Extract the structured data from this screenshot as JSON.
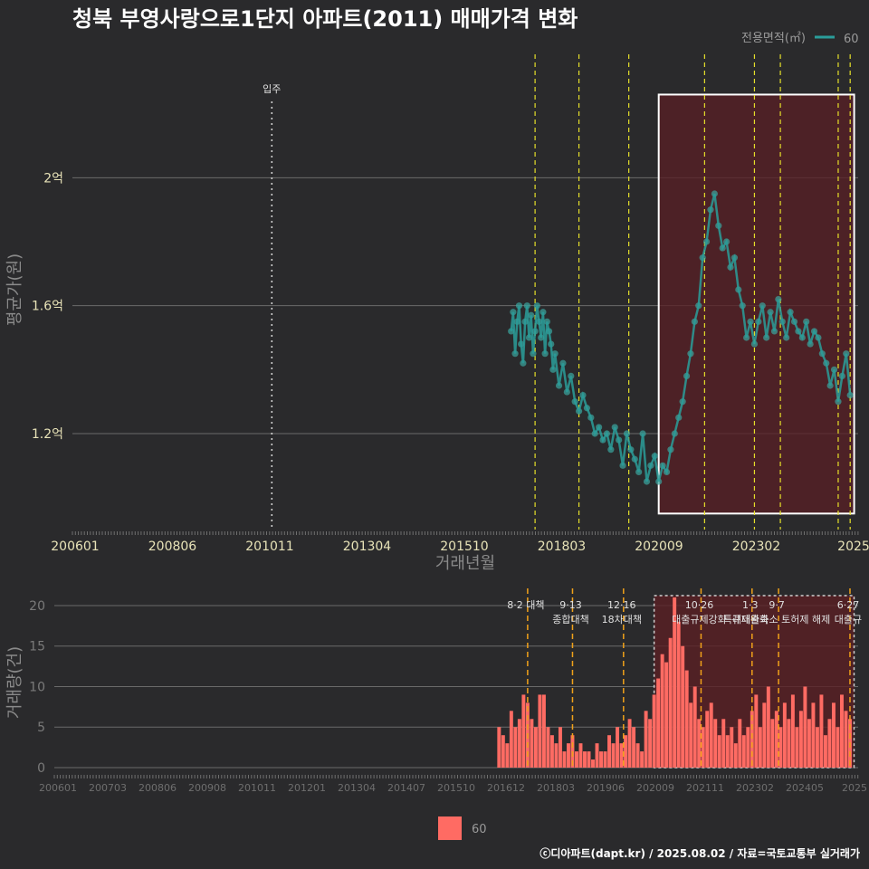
{
  "title": "청북 부영사랑으로1단지 아파트(2011) 매매가격 변화",
  "footer": "ⓒ디아파트(dapt.kr) / 2025.08.02 / 자료=국토교통부 실거래가",
  "colors": {
    "line": "#2a9d9a",
    "point": "#3aa6a0",
    "bar": "#ff6b63",
    "vline": "#e6e02a",
    "policy": "#f0a11a",
    "highlight_fill": "#5a1f24",
    "highlight_border": "#ffffff"
  },
  "chart_data": [
    {
      "type": "scatter",
      "title": "청북 부영사랑으로1단지 아파트(2011) 매매가격 변화",
      "xlabel": "거래년월",
      "ylabel": "평균가(원)",
      "x_tick_labels": [
        "200601",
        "200806",
        "201011",
        "201304",
        "201510",
        "201803",
        "202009",
        "202302",
        "2025"
      ],
      "y_ticks": [
        {
          "value": 1.2,
          "label": "1.2억"
        },
        {
          "value": 1.6,
          "label": "1.6억"
        },
        {
          "value": 2.0,
          "label": "2억"
        }
      ],
      "ylim": [
        0.9,
        2.4
      ],
      "legend": {
        "title": "전용면적(㎡)",
        "entries": [
          "60"
        ],
        "position": "top-right"
      },
      "annotations": [
        {
          "label": "입주",
          "x": 2011.0
        }
      ],
      "highlight_range": {
        "x": [
          2020.7,
          2025.6
        ],
        "y": [
          0.95,
          2.26
        ]
      },
      "policy_lines_x": [
        2017.6,
        2018.7,
        2019.95,
        2021.85,
        2023.1,
        2023.75,
        2025.2,
        2025.5
      ],
      "series": [
        {
          "name": "60",
          "points": [
            [
              2017.0,
              1.52
            ],
            [
              2017.05,
              1.58
            ],
            [
              2017.1,
              1.45
            ],
            [
              2017.15,
              1.55
            ],
            [
              2017.2,
              1.6
            ],
            [
              2017.25,
              1.48
            ],
            [
              2017.3,
              1.42
            ],
            [
              2017.35,
              1.55
            ],
            [
              2017.4,
              1.6
            ],
            [
              2017.45,
              1.5
            ],
            [
              2017.5,
              1.57
            ],
            [
              2017.55,
              1.45
            ],
            [
              2017.6,
              1.52
            ],
            [
              2017.65,
              1.6
            ],
            [
              2017.7,
              1.55
            ],
            [
              2017.75,
              1.5
            ],
            [
              2017.8,
              1.58
            ],
            [
              2017.85,
              1.45
            ],
            [
              2017.9,
              1.55
            ],
            [
              2017.95,
              1.52
            ],
            [
              2018.0,
              1.48
            ],
            [
              2018.05,
              1.4
            ],
            [
              2018.1,
              1.45
            ],
            [
              2018.2,
              1.35
            ],
            [
              2018.3,
              1.42
            ],
            [
              2018.4,
              1.33
            ],
            [
              2018.5,
              1.38
            ],
            [
              2018.6,
              1.3
            ],
            [
              2018.7,
              1.27
            ],
            [
              2018.8,
              1.32
            ],
            [
              2018.9,
              1.28
            ],
            [
              2019.0,
              1.25
            ],
            [
              2019.1,
              1.2
            ],
            [
              2019.2,
              1.22
            ],
            [
              2019.3,
              1.18
            ],
            [
              2019.4,
              1.2
            ],
            [
              2019.5,
              1.15
            ],
            [
              2019.6,
              1.22
            ],
            [
              2019.7,
              1.18
            ],
            [
              2019.8,
              1.1
            ],
            [
              2019.9,
              1.2
            ],
            [
              2020.0,
              1.15
            ],
            [
              2020.1,
              1.12
            ],
            [
              2020.2,
              1.08
            ],
            [
              2020.3,
              1.2
            ],
            [
              2020.4,
              1.05
            ],
            [
              2020.5,
              1.1
            ],
            [
              2020.6,
              1.13
            ],
            [
              2020.7,
              1.05
            ],
            [
              2020.8,
              1.1
            ],
            [
              2020.9,
              1.08
            ],
            [
              2021.0,
              1.15
            ],
            [
              2021.1,
              1.2
            ],
            [
              2021.2,
              1.25
            ],
            [
              2021.3,
              1.3
            ],
            [
              2021.4,
              1.38
            ],
            [
              2021.5,
              1.45
            ],
            [
              2021.6,
              1.55
            ],
            [
              2021.7,
              1.6
            ],
            [
              2021.8,
              1.75
            ],
            [
              2021.9,
              1.8
            ],
            [
              2022.0,
              1.9
            ],
            [
              2022.1,
              1.95
            ],
            [
              2022.2,
              1.85
            ],
            [
              2022.3,
              1.78
            ],
            [
              2022.4,
              1.8
            ],
            [
              2022.5,
              1.72
            ],
            [
              2022.6,
              1.75
            ],
            [
              2022.7,
              1.65
            ],
            [
              2022.8,
              1.6
            ],
            [
              2022.9,
              1.5
            ],
            [
              2023.0,
              1.55
            ],
            [
              2023.1,
              1.48
            ],
            [
              2023.2,
              1.55
            ],
            [
              2023.3,
              1.6
            ],
            [
              2023.4,
              1.5
            ],
            [
              2023.5,
              1.58
            ],
            [
              2023.6,
              1.52
            ],
            [
              2023.7,
              1.62
            ],
            [
              2023.8,
              1.55
            ],
            [
              2023.9,
              1.5
            ],
            [
              2024.0,
              1.58
            ],
            [
              2024.1,
              1.55
            ],
            [
              2024.2,
              1.52
            ],
            [
              2024.3,
              1.5
            ],
            [
              2024.4,
              1.55
            ],
            [
              2024.5,
              1.48
            ],
            [
              2024.6,
              1.52
            ],
            [
              2024.7,
              1.5
            ],
            [
              2024.8,
              1.45
            ],
            [
              2024.9,
              1.42
            ],
            [
              2025.0,
              1.35
            ],
            [
              2025.1,
              1.4
            ],
            [
              2025.2,
              1.3
            ],
            [
              2025.3,
              1.38
            ],
            [
              2025.4,
              1.45
            ],
            [
              2025.5,
              1.32
            ]
          ]
        }
      ]
    },
    {
      "type": "bar",
      "ylabel": "거래량(건)",
      "x_tick_labels": [
        "200601",
        "200703",
        "200806",
        "200908",
        "201011",
        "201201",
        "201304",
        "201407",
        "201510",
        "201612",
        "201803",
        "201906",
        "202009",
        "202111",
        "202302",
        "202405",
        "2025"
      ],
      "y_ticks": [
        0,
        5,
        10,
        15,
        20
      ],
      "ylim": [
        0,
        21
      ],
      "legend": {
        "entries": [
          "60"
        ],
        "position": "bottom"
      },
      "highlight_range": {
        "x": [
          2020.7,
          2025.6
        ]
      },
      "policy_annotations": [
        {
          "x": 2017.6,
          "lines": [
            "8·2 대책"
          ]
        },
        {
          "x": 2018.7,
          "lines": [
            "9·13",
            "종합대책"
          ]
        },
        {
          "x": 2019.95,
          "lines": [
            "12·16",
            "18차대책"
          ]
        },
        {
          "x": 2021.85,
          "lines": [
            "10·26",
            "대출규제강화"
          ]
        },
        {
          "x": 2023.1,
          "lines": [
            "1·3",
            "규제완화"
          ]
        },
        {
          "x": 2023.75,
          "lines": [
            "9·7",
            "특례대출축소 토허제 해제"
          ]
        },
        {
          "x": 2025.5,
          "lines": [
            "6·27",
            "대출규"
          ]
        }
      ],
      "series": [
        {
          "name": "60",
          "values": [
            [
              2016.9,
              5
            ],
            [
              2017.0,
              4
            ],
            [
              2017.1,
              3
            ],
            [
              2017.2,
              7
            ],
            [
              2017.3,
              5
            ],
            [
              2017.4,
              6
            ],
            [
              2017.5,
              9
            ],
            [
              2017.6,
              8
            ],
            [
              2017.7,
              6
            ],
            [
              2017.8,
              5
            ],
            [
              2017.9,
              9
            ],
            [
              2018.0,
              9
            ],
            [
              2018.1,
              5
            ],
            [
              2018.2,
              4
            ],
            [
              2018.3,
              3
            ],
            [
              2018.4,
              5
            ],
            [
              2018.5,
              2
            ],
            [
              2018.6,
              3
            ],
            [
              2018.7,
              4
            ],
            [
              2018.8,
              2
            ],
            [
              2018.9,
              3
            ],
            [
              2019.0,
              2
            ],
            [
              2019.1,
              2
            ],
            [
              2019.2,
              1
            ],
            [
              2019.3,
              3
            ],
            [
              2019.4,
              2
            ],
            [
              2019.5,
              2
            ],
            [
              2019.6,
              4
            ],
            [
              2019.7,
              3
            ],
            [
              2019.8,
              5
            ],
            [
              2019.9,
              3
            ],
            [
              2020.0,
              4
            ],
            [
              2020.1,
              6
            ],
            [
              2020.2,
              5
            ],
            [
              2020.3,
              3
            ],
            [
              2020.4,
              2
            ],
            [
              2020.5,
              7
            ],
            [
              2020.6,
              6
            ],
            [
              2020.7,
              9
            ],
            [
              2020.8,
              11
            ],
            [
              2020.9,
              14
            ],
            [
              2021.0,
              13
            ],
            [
              2021.1,
              16
            ],
            [
              2021.2,
              21
            ],
            [
              2021.3,
              18
            ],
            [
              2021.4,
              15
            ],
            [
              2021.5,
              12
            ],
            [
              2021.6,
              8
            ],
            [
              2021.7,
              10
            ],
            [
              2021.8,
              6
            ],
            [
              2021.9,
              5
            ],
            [
              2022.0,
              7
            ],
            [
              2022.1,
              8
            ],
            [
              2022.2,
              6
            ],
            [
              2022.3,
              4
            ],
            [
              2022.4,
              6
            ],
            [
              2022.5,
              4
            ],
            [
              2022.6,
              5
            ],
            [
              2022.7,
              3
            ],
            [
              2022.8,
              6
            ],
            [
              2022.9,
              4
            ],
            [
              2023.0,
              5
            ],
            [
              2023.1,
              7
            ],
            [
              2023.2,
              9
            ],
            [
              2023.3,
              5
            ],
            [
              2023.4,
              8
            ],
            [
              2023.5,
              10
            ],
            [
              2023.6,
              6
            ],
            [
              2023.7,
              7
            ],
            [
              2023.8,
              5
            ],
            [
              2023.9,
              8
            ],
            [
              2024.0,
              6
            ],
            [
              2024.1,
              9
            ],
            [
              2024.2,
              5
            ],
            [
              2024.3,
              7
            ],
            [
              2024.4,
              10
            ],
            [
              2024.5,
              6
            ],
            [
              2024.6,
              8
            ],
            [
              2024.7,
              5
            ],
            [
              2024.8,
              9
            ],
            [
              2024.9,
              4
            ],
            [
              2025.0,
              6
            ],
            [
              2025.1,
              8
            ],
            [
              2025.2,
              5
            ],
            [
              2025.3,
              9
            ],
            [
              2025.4,
              7
            ],
            [
              2025.5,
              6
            ]
          ]
        }
      ]
    }
  ]
}
